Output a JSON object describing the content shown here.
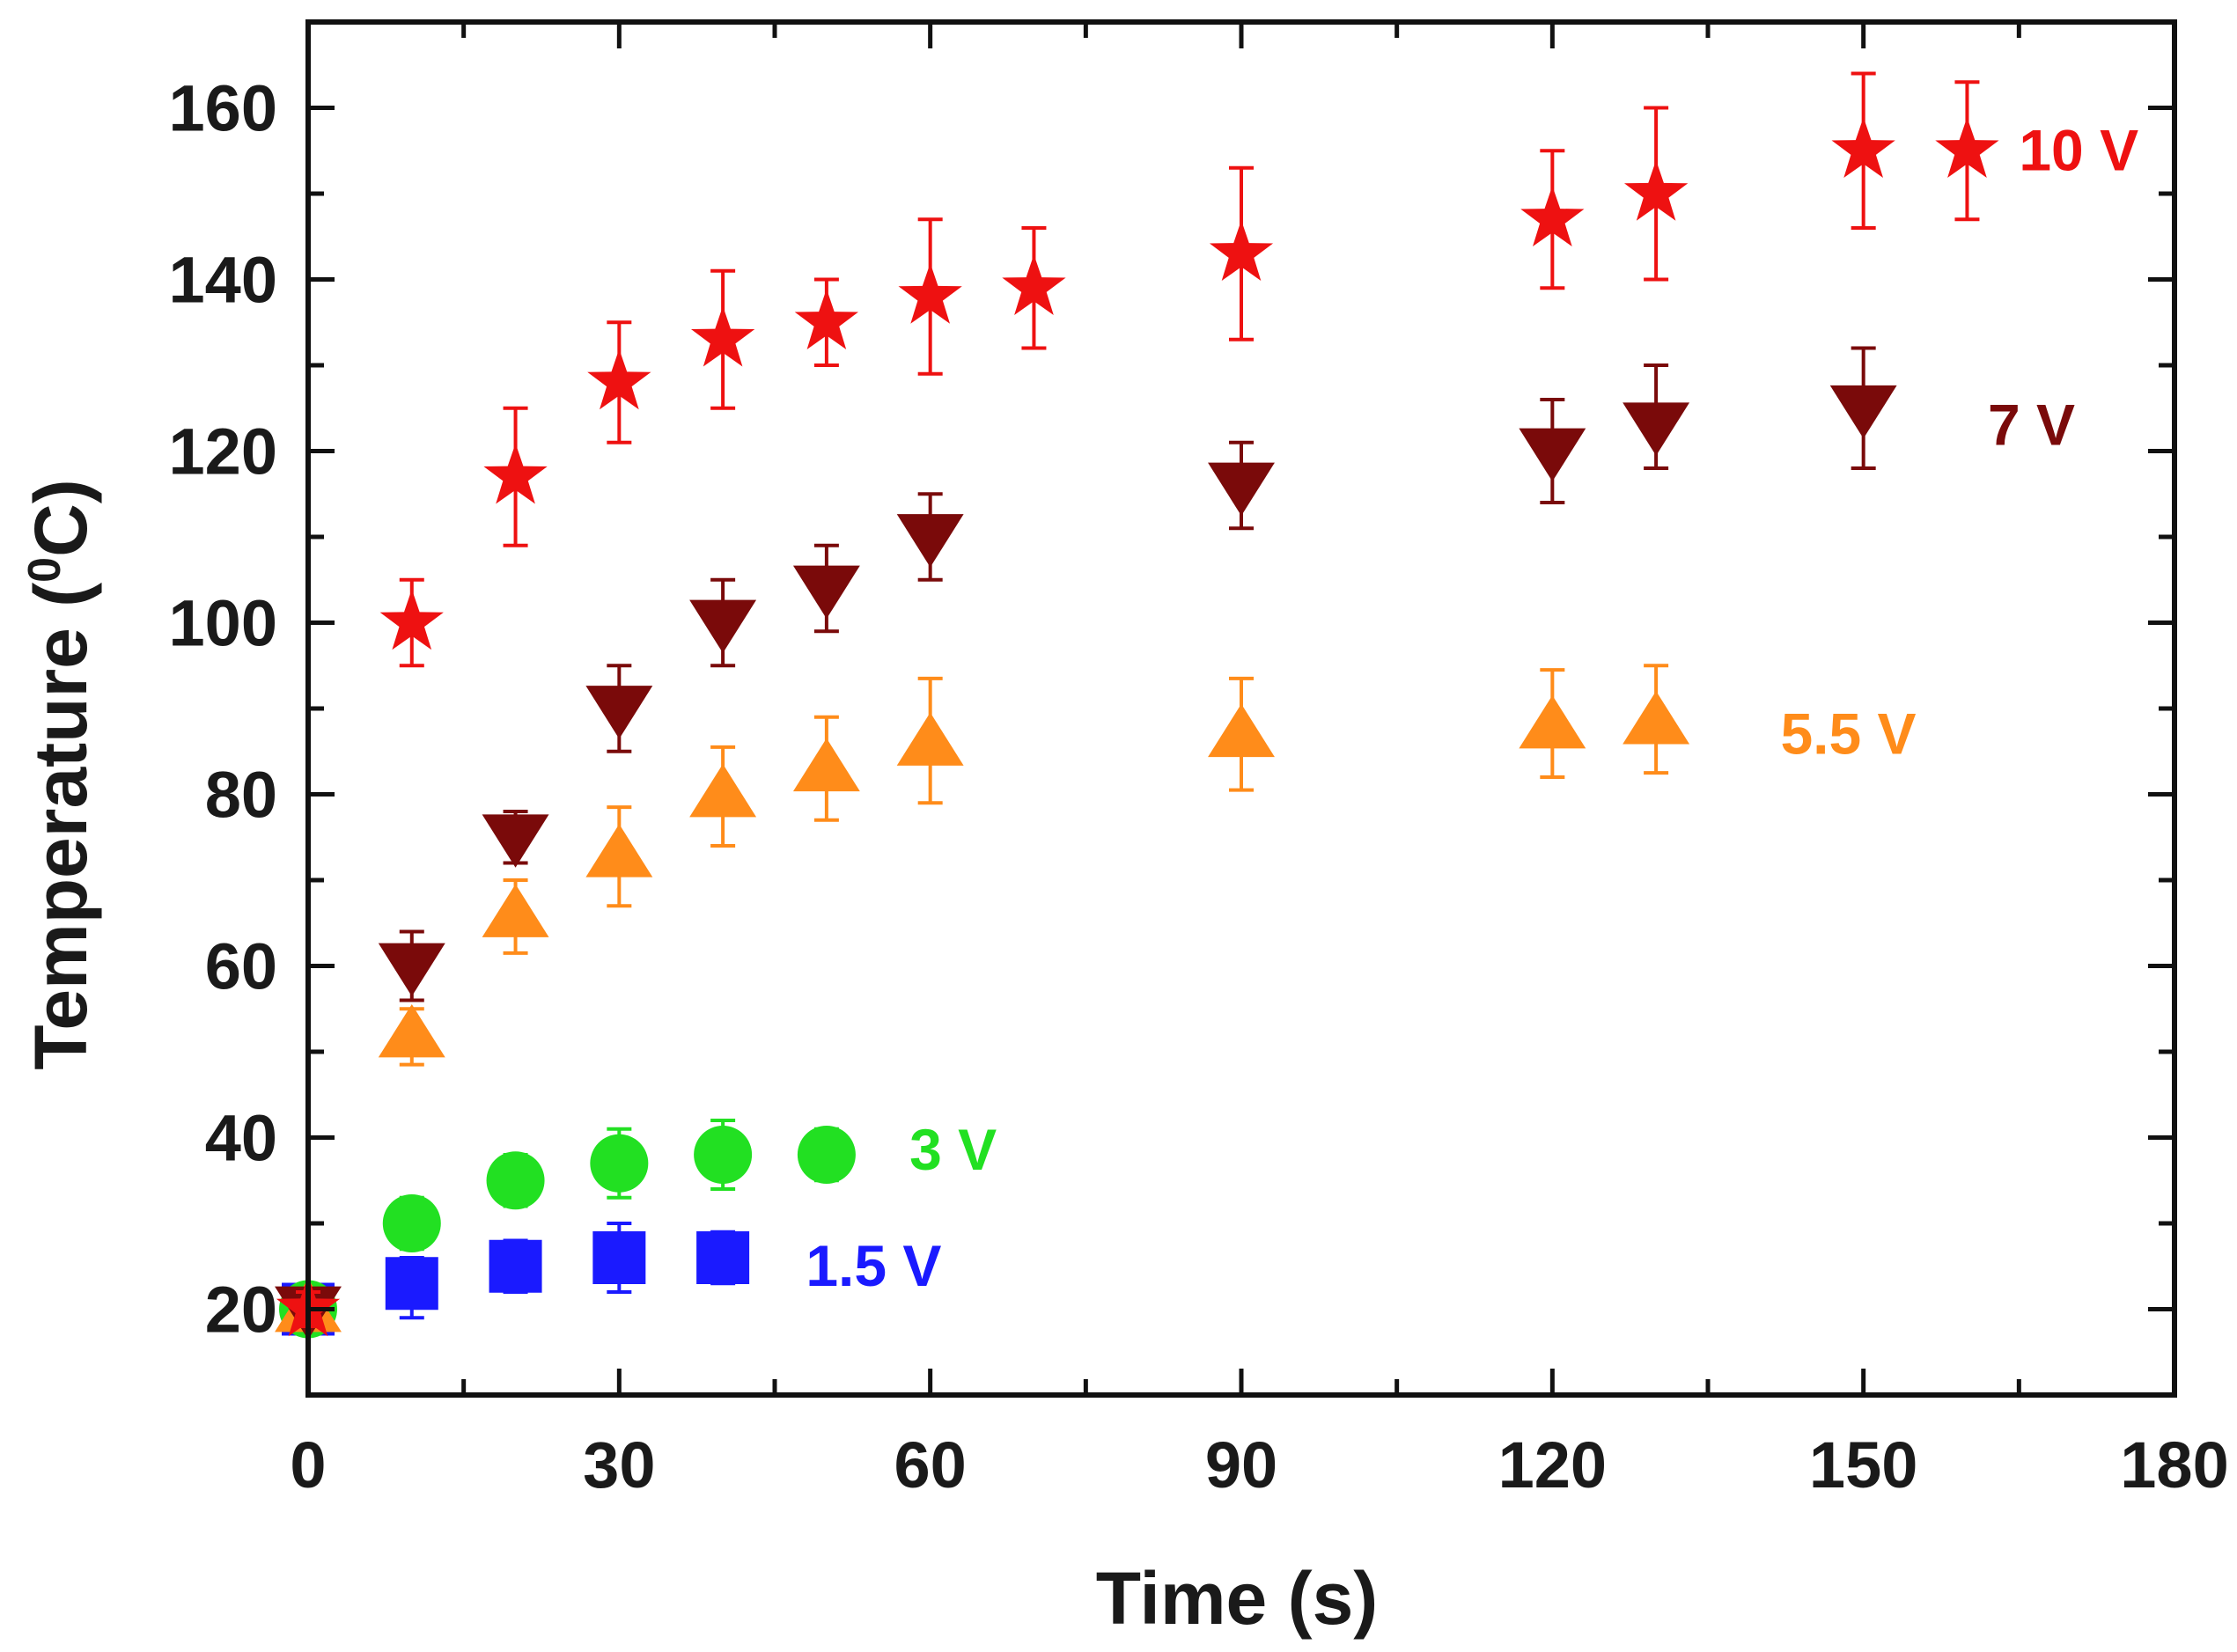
{
  "chart_data": {
    "type": "scatter",
    "title": "",
    "xlabel": "Time (s)",
    "ylabel_prefix": "Temperature (",
    "ylabel_sup": "0",
    "ylabel_suffix": "C)",
    "xlim": [
      0,
      180
    ],
    "ylim": [
      10,
      170
    ],
    "x_ticks": [
      0,
      30,
      60,
      90,
      120,
      150,
      180
    ],
    "y_ticks": [
      20,
      40,
      60,
      80,
      100,
      120,
      140,
      160
    ],
    "x_tick_labels": [
      "0",
      "30",
      "60",
      "90",
      "120",
      "150",
      "180"
    ],
    "y_tick_labels": [
      "20",
      "40",
      "60",
      "80",
      "100",
      "120",
      "140",
      "160"
    ],
    "grid": false,
    "series": [
      {
        "name": "1.5 V",
        "label": "1.5 V",
        "label_at": [
          48,
          25
        ],
        "color": "#1a1aff",
        "marker": "square",
        "x": [
          0,
          10,
          20,
          30,
          40
        ],
        "y": [
          20,
          23,
          25,
          26,
          26
        ],
        "err_up": [
          2,
          3,
          3,
          4,
          3
        ],
        "err_down": [
          2,
          4,
          3,
          4,
          3
        ]
      },
      {
        "name": "3 V",
        "label": "3 V",
        "label_at": [
          58,
          38.5
        ],
        "color": "#22e022",
        "marker": "circle",
        "x": [
          0,
          10,
          20,
          30,
          40,
          50
        ],
        "y": [
          20,
          30,
          35,
          37,
          38,
          38
        ],
        "err_up": [
          2,
          3,
          3,
          4,
          4,
          3
        ],
        "err_down": [
          2,
          3,
          3,
          4,
          4,
          3
        ]
      },
      {
        "name": "5.5 V",
        "label": "5.5 V",
        "label_at": [
          142,
          87
        ],
        "color": "#ff8c1a",
        "marker": "triangle-up",
        "x": [
          0,
          10,
          20,
          30,
          40,
          50,
          60,
          90,
          120,
          130
        ],
        "y": [
          20,
          52,
          66,
          73,
          80,
          83,
          86,
          87,
          88,
          88.5
        ],
        "err_up": [
          2,
          3,
          4,
          5.5,
          5.5,
          6,
          7.5,
          6.5,
          6.5,
          6.5
        ],
        "err_down": [
          2,
          3.5,
          4.5,
          6,
          6,
          6,
          7,
          6.5,
          6,
          6
        ]
      },
      {
        "name": "7 V",
        "label": "7 V",
        "label_at": [
          162,
          123
        ],
        "color": "#7a0a0a",
        "marker": "triangle-down",
        "x": [
          0,
          10,
          20,
          30,
          40,
          50,
          60,
          90,
          120,
          130,
          150
        ],
        "y": [
          20,
          60,
          75,
          90,
          100,
          104,
          110,
          116,
          120,
          123,
          125
        ],
        "err_up": [
          2,
          4,
          3,
          5,
          5,
          5,
          5,
          5,
          6,
          7,
          7
        ],
        "err_down": [
          2,
          4,
          3,
          5,
          5,
          5,
          5,
          5,
          6,
          5,
          7
        ]
      },
      {
        "name": "10 V",
        "label": "10 V",
        "label_at": [
          165,
          155
        ],
        "color": "#ee1111",
        "marker": "star",
        "x": [
          0,
          10,
          20,
          30,
          40,
          50,
          60,
          70,
          90,
          120,
          130,
          150,
          160
        ],
        "y": [
          20,
          100,
          117,
          128,
          133,
          135,
          138,
          139,
          143,
          147,
          150,
          155,
          155
        ],
        "err_up": [
          2,
          5,
          8,
          7,
          8,
          5,
          9,
          7,
          10,
          8,
          10,
          9,
          8
        ],
        "err_down": [
          2,
          5,
          8,
          7,
          8,
          5,
          9,
          7,
          10,
          8,
          10,
          9,
          8
        ]
      }
    ]
  }
}
